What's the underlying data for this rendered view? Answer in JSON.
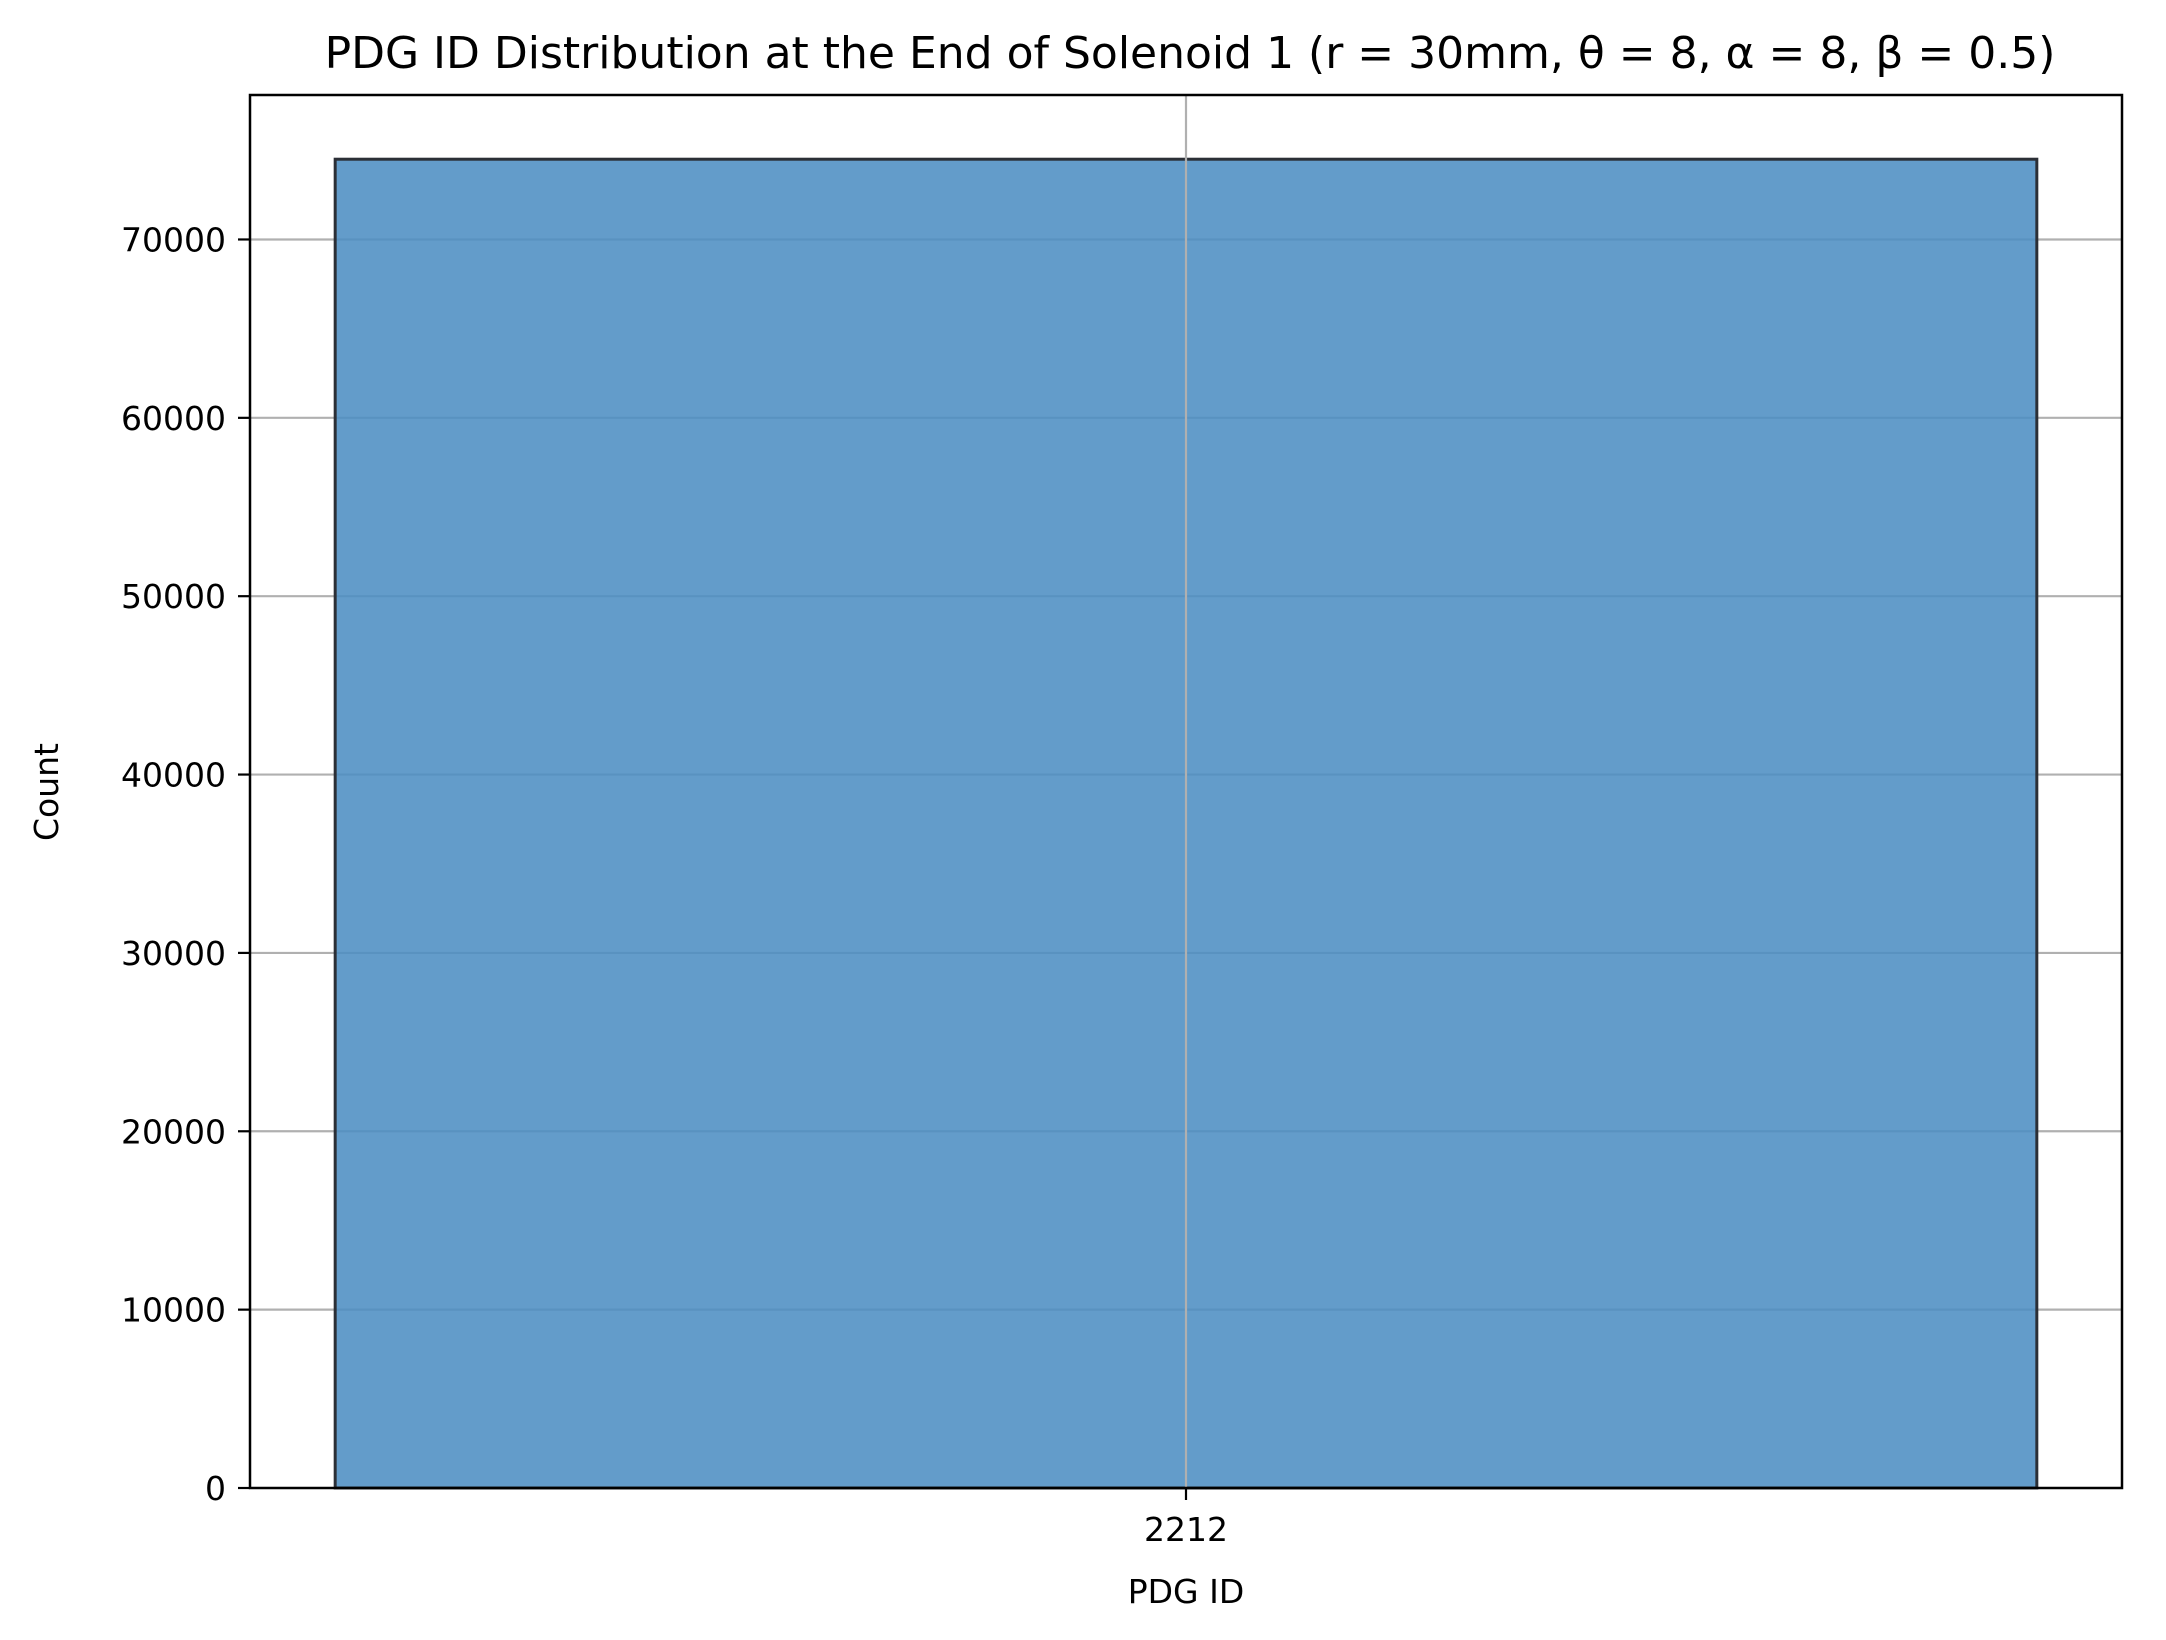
{
  "chart_data": {
    "type": "bar",
    "title": "PDG ID Distribution at the End of Solenoid 1 (r = 30mm, θ = 8, α = 8, β = 0.5)",
    "xlabel": "PDG ID",
    "ylabel": "Count",
    "categories": [
      "2212"
    ],
    "values": [
      74500
    ],
    "ylim": [
      0,
      78100
    ],
    "yticks": [
      0,
      10000,
      20000,
      30000,
      40000,
      50000,
      60000,
      70000
    ],
    "ytick_labels": [
      "0",
      "10000",
      "20000",
      "30000",
      "40000",
      "50000",
      "60000",
      "70000"
    ],
    "grid": true,
    "bar_color": "#4c8dc2",
    "bar_edge_color": "#2b2f36",
    "grid_color": "#b0b0b0"
  }
}
